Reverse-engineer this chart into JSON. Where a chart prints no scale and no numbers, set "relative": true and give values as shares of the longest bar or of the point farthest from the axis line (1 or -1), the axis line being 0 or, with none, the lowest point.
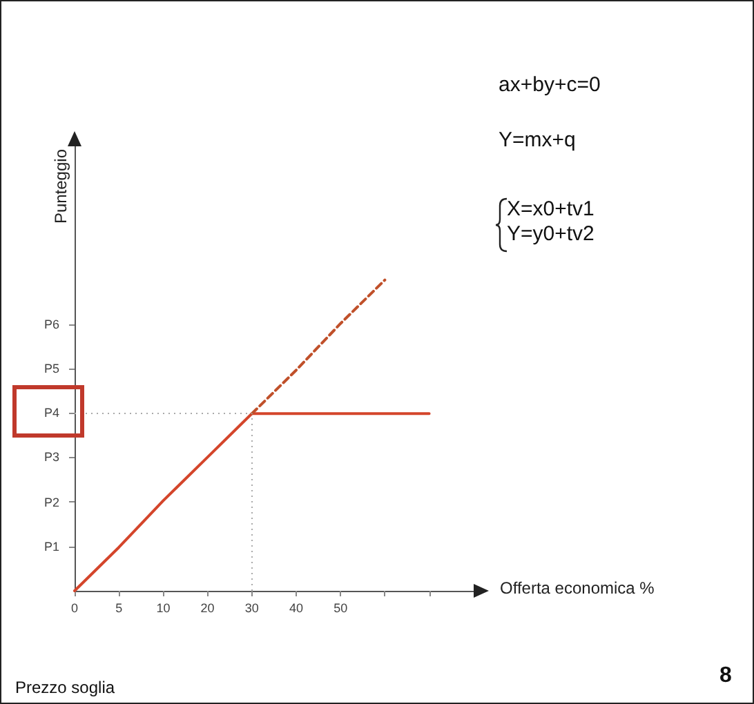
{
  "chart_data": {
    "type": "line",
    "relative": true,
    "xlabel": "Offerta economica %",
    "ylabel": "Punteggio",
    "annotations": [
      "ax+by+c=0",
      "Y=mx+q",
      "X=x0+tv1",
      "Y=y0+tv2",
      "Prezzo soglia",
      "8",
      "P1",
      "P2",
      "P3",
      "P4",
      "P5",
      "P6"
    ],
    "categories": [
      "0",
      "5",
      "10",
      "20",
      "30",
      "40",
      "50",
      null,
      null,
      null
    ],
    "series": [
      {
        "values": [
          0,
          0.14,
          0.29,
          0.43,
          0.57,
          0.57,
          0.57,
          0.57,
          0.57,
          null
        ],
        "color": "#d4452b",
        "line_style": "solid"
      },
      {
        "values": [
          null,
          null,
          null,
          null,
          0.57,
          0.71,
          0.86,
          1,
          null,
          null
        ],
        "color": "#c0502a",
        "line_style": "dashed"
      }
    ],
    "ref_lines": [
      {
        "axis": "x",
        "value": "30",
        "line_style": "dotted",
        "color": "#aaaaaa"
      },
      {
        "axis": "y",
        "value": 0.57,
        "line_style": "dotted",
        "color": "#aaaaaa"
      }
    ],
    "grid": false,
    "marker": "none"
  }
}
